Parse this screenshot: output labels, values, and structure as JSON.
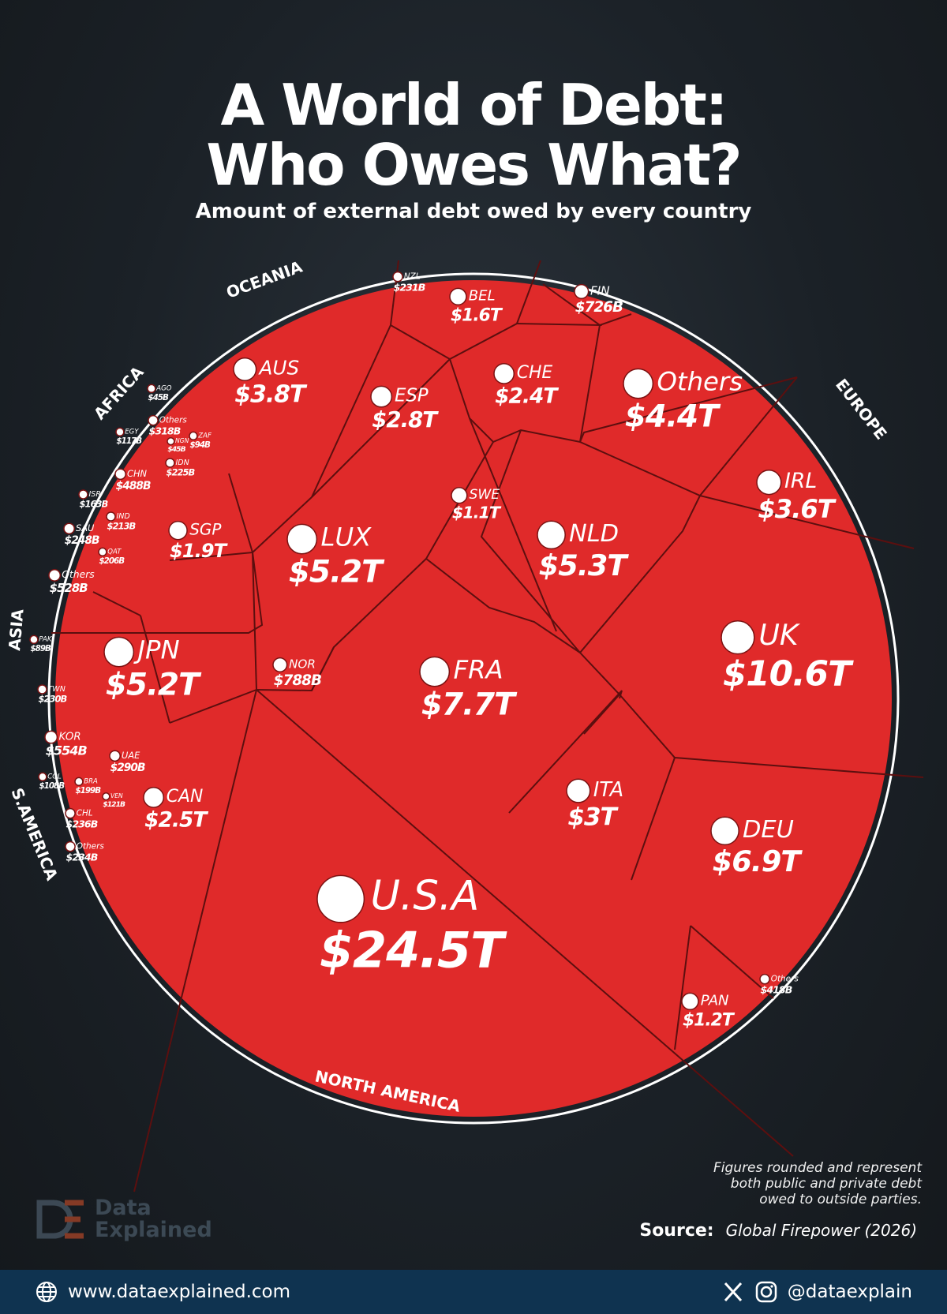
{
  "header": {
    "title_line1": "A World of Debt:",
    "title_line2": "Who Owes What?",
    "subtitle": "Amount of external debt owed by every country"
  },
  "colors": {
    "cell": "#e02a2a",
    "border": "#5c0f0f",
    "background": "#1b2127",
    "footer": "#0f3350"
  },
  "chart_data": {
    "type": "treemap",
    "title": "A World of Debt: Who Owes What?",
    "subtitle": "Amount of external debt owed by every country",
    "regions": [
      "OCEANIA",
      "AFRICA",
      "ASIA",
      "S.AMERICA",
      "NORTH AMERICA",
      "EUROPE"
    ],
    "cells": [
      {
        "code": "U.S.A",
        "label": "$24.5T",
        "value": 24500,
        "region": "NORTH AMERICA"
      },
      {
        "code": "UK",
        "label": "$10.6T",
        "value": 10600,
        "region": "EUROPE"
      },
      {
        "code": "FRA",
        "label": "$7.7T",
        "value": 7700,
        "region": "EUROPE"
      },
      {
        "code": "DEU",
        "label": "$6.9T",
        "value": 6900,
        "region": "EUROPE"
      },
      {
        "code": "NLD",
        "label": "$5.3T",
        "value": 5300,
        "region": "EUROPE"
      },
      {
        "code": "LUX",
        "label": "$5.2T",
        "value": 5200,
        "region": "EUROPE"
      },
      {
        "code": "JPN",
        "label": "$5.2T",
        "value": 5200,
        "region": "ASIA"
      },
      {
        "code": "Others",
        "label": "$4.4T",
        "value": 4400,
        "region": "EUROPE"
      },
      {
        "code": "AUS",
        "label": "$3.8T",
        "value": 3800,
        "region": "OCEANIA"
      },
      {
        "code": "IRL",
        "label": "$3.6T",
        "value": 3600,
        "region": "EUROPE"
      },
      {
        "code": "ITA",
        "label": "$3T",
        "value": 3000,
        "region": "EUROPE"
      },
      {
        "code": "ESP",
        "label": "$2.8T",
        "value": 2800,
        "region": "EUROPE"
      },
      {
        "code": "CAN",
        "label": "$2.5T",
        "value": 2500,
        "region": "NORTH AMERICA"
      },
      {
        "code": "CHE",
        "label": "$2.4T",
        "value": 2400,
        "region": "EUROPE"
      },
      {
        "code": "SGP",
        "label": "$1.9T",
        "value": 1900,
        "region": "ASIA"
      },
      {
        "code": "BEL",
        "label": "$1.6T",
        "value": 1600,
        "region": "EUROPE"
      },
      {
        "code": "PAN",
        "label": "$1.2T",
        "value": 1200,
        "region": "NORTH AMERICA"
      },
      {
        "code": "SWE",
        "label": "$1.1T",
        "value": 1100,
        "region": "EUROPE"
      },
      {
        "code": "NOR",
        "label": "$788B",
        "value": 788,
        "region": "EUROPE"
      },
      {
        "code": "FIN",
        "label": "$726B",
        "value": 726,
        "region": "EUROPE"
      },
      {
        "code": "KOR",
        "label": "$554B",
        "value": 554,
        "region": "ASIA"
      },
      {
        "code": "Others",
        "label": "$528B",
        "value": 528,
        "region": "ASIA"
      },
      {
        "code": "CHN",
        "label": "$488B",
        "value": 488,
        "region": "ASIA"
      },
      {
        "code": "Others",
        "label": "$418B",
        "value": 418,
        "region": "NORTH AMERICA"
      },
      {
        "code": "Others",
        "label": "$318B",
        "value": 318,
        "region": "AFRICA"
      },
      {
        "code": "UAE",
        "label": "$290B",
        "value": 290,
        "region": "ASIA"
      },
      {
        "code": "SAU",
        "label": "$248B",
        "value": 248,
        "region": "ASIA"
      },
      {
        "code": "CHL",
        "label": "$236B",
        "value": 236,
        "region": "S.AMERICA"
      },
      {
        "code": "Others",
        "label": "$234B",
        "value": 234,
        "region": "S.AMERICA"
      },
      {
        "code": "NZL",
        "label": "$231B",
        "value": 231,
        "region": "OCEANIA"
      },
      {
        "code": "TWN",
        "label": "$230B",
        "value": 230,
        "region": "ASIA"
      },
      {
        "code": "IDN",
        "label": "$225B",
        "value": 225,
        "region": "ASIA"
      },
      {
        "code": "IND",
        "label": "$213B",
        "value": 213,
        "region": "ASIA"
      },
      {
        "code": "QAT",
        "label": "$206B",
        "value": 206,
        "region": "ASIA"
      },
      {
        "code": "BRA",
        "label": "$199B",
        "value": 199,
        "region": "S.AMERICA"
      },
      {
        "code": "ISR",
        "label": "$163B",
        "value": 163,
        "region": "ASIA"
      },
      {
        "code": "VEN",
        "label": "$121B",
        "value": 121,
        "region": "S.AMERICA"
      },
      {
        "code": "EGY",
        "label": "$117B",
        "value": 117,
        "region": "AFRICA"
      },
      {
        "code": "COL",
        "label": "$108B",
        "value": 108,
        "region": "S.AMERICA"
      },
      {
        "code": "ZAF",
        "label": "$94B",
        "value": 94,
        "region": "AFRICA"
      },
      {
        "code": "PAK",
        "label": "$89B",
        "value": 89,
        "region": "ASIA"
      },
      {
        "code": "AGO",
        "label": "$45B",
        "value": 45,
        "region": "AFRICA"
      },
      {
        "code": "NGN",
        "label": "$45B",
        "value": 45,
        "region": "AFRICA"
      }
    ]
  },
  "footnote": {
    "line1": "Figures rounded and represent",
    "line2": "both public and private debt",
    "line3": "owed to outside parties."
  },
  "source": {
    "label": "Source:",
    "value": "Global Firepower (2026)"
  },
  "brand": {
    "line1": "Data",
    "line2": "Explained",
    "icon": "data-explained-logo"
  },
  "footer": {
    "website": "www.dataexplained.com",
    "handle": "@dataexplain",
    "icons": [
      "globe-icon",
      "x-icon",
      "instagram-icon"
    ]
  }
}
